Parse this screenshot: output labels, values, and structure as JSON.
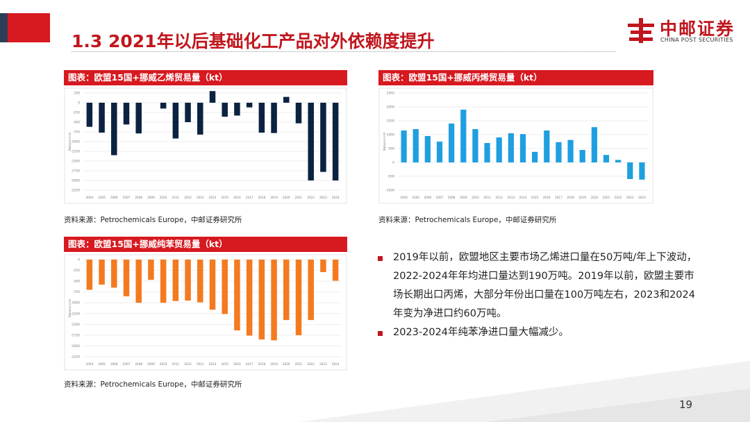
{
  "header": {
    "title": "1.3 2021年以后基础化工产品对外依赖度提升",
    "logo_cn": "中邮证券",
    "logo_en": "CHINA POST SECURITIES"
  },
  "colors": {
    "brand_red": "#d71920",
    "navy": "#0b2341",
    "blue": "#1f9fe0",
    "orange": "#f47a20"
  },
  "chart_data": [
    {
      "type": "bar",
      "title": "图表：欧盟15国+挪威乙烯贸易量（kt）",
      "ylabel": "Balance in kt",
      "categories": [
        "2004",
        "2005",
        "2006",
        "2007",
        "2008",
        "2009",
        "2010",
        "2011",
        "2012",
        "2013",
        "2014",
        "2015",
        "2016",
        "2017",
        "2018",
        "2019",
        "2020",
        "2021",
        "2022",
        "2023",
        "2024"
      ],
      "values": [
        -620,
        -770,
        -1350,
        -560,
        -790,
        0,
        -150,
        -920,
        -500,
        -820,
        300,
        -360,
        -330,
        -120,
        -770,
        -780,
        150,
        -530,
        -2000,
        -1780,
        -2000
      ],
      "yticks": [
        250,
        0,
        -250,
        -500,
        -750,
        -1000,
        -1250,
        -1500,
        -1750,
        -2000,
        -2250
      ],
      "ylim": [
        -2250,
        250
      ],
      "color": "#0b2341",
      "source": "资料来源：Petrochemicals Europe，中邮证券研究所"
    },
    {
      "type": "bar",
      "title": "图表：欧盟15国+挪威丙烯贸易量（kt）",
      "ylabel": "Balance in kt",
      "categories": [
        "2004",
        "2005",
        "2006",
        "2007",
        "2008",
        "2009",
        "2010",
        "2011",
        "2012",
        "2013",
        "2014",
        "2015",
        "2016",
        "2017",
        "2018",
        "2019",
        "2020",
        "2021",
        "2022",
        "2023",
        "2024"
      ],
      "values": [
        1150,
        1200,
        950,
        750,
        1400,
        1900,
        1200,
        700,
        900,
        1050,
        1020,
        380,
        1150,
        730,
        810,
        450,
        1270,
        270,
        90,
        -600,
        -620
      ],
      "yticks": [
        2500,
        2000,
        1500,
        1000,
        500,
        0,
        -500,
        -1000
      ],
      "ylim": [
        -1000,
        2500
      ],
      "color": "#1f9fe0",
      "source": "资料来源：Petrochemicals Europe，中邮证券研究所"
    },
    {
      "type": "bar",
      "title": "图表：欧盟15国+挪威纯苯贸易量（kt）",
      "ylabel": "Balance in kt",
      "categories": [
        "2004",
        "2005",
        "2006",
        "2007",
        "2008",
        "2009",
        "2010",
        "2011",
        "2012",
        "2013",
        "2014",
        "2015",
        "2016",
        "2017",
        "2018",
        "2019",
        "2020",
        "2021",
        "2022",
        "2023",
        "2024"
      ],
      "values": [
        -700,
        -580,
        -650,
        -850,
        -1000,
        -470,
        -1000,
        -960,
        -950,
        -990,
        -1160,
        -1260,
        -1640,
        -1760,
        -1850,
        -1870,
        -1400,
        -1750,
        -1400,
        -290,
        -490
      ],
      "yticks": [
        0,
        -250,
        -500,
        -750,
        -1000,
        -1250,
        -1500,
        -1750,
        -2000,
        -2250
      ],
      "ylim": [
        -2250,
        0
      ],
      "color": "#f47a20",
      "source": "资料来源：Petrochemicals Europe，中邮证券研究所"
    }
  ],
  "bullets": [
    "2019年以前，欧盟地区主要市场乙烯进口量在50万吨/年上下波动，2022-2024年年均进口量达到190万吨。2019年以前，欧盟主要市场长期出口丙烯，大部分年份出口量在100万吨左右，2023和2024年变为净进口约60万吨。",
    "2023-2024年纯苯净进口量大幅减少。"
  ],
  "page_number": "19"
}
